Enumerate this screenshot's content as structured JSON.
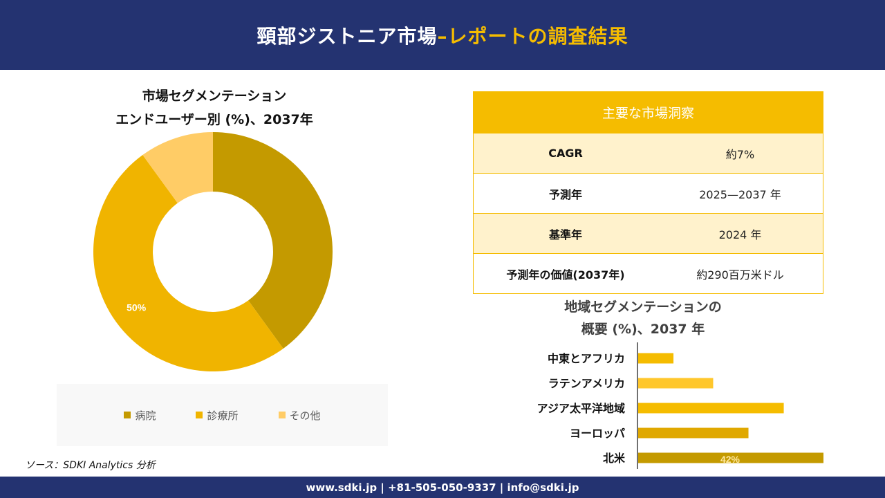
{
  "header": {
    "title_main": "頸部ジストニア市場",
    "title_accent": "–レポートの調査結果"
  },
  "donut": {
    "title_line1": "市場セグメンテーション",
    "title_line2": "エンドユーザー別 (%)、2037年"
  },
  "insights": {
    "heading": "主要な市場洞察",
    "rows": [
      {
        "key": "CAGR",
        "value": "約7%"
      },
      {
        "key": "予測年",
        "value": "2025—2037 年"
      },
      {
        "key": "基準年",
        "value": "2024 年"
      },
      {
        "key": "予測年の価値(2037年)",
        "value": "約290百万米ドル"
      }
    ]
  },
  "bar_section": {
    "title_line1": "地域セグメンテーションの",
    "title_line2": "概要 (%)、2037 年"
  },
  "source": "ソース：SDKI Analytics 分析",
  "footer": {
    "text": "www.sdki.jp | +81-505-050-9337 | info@sdki.jp"
  },
  "chart_data": [
    {
      "type": "pie",
      "variant": "donut",
      "title": "市場セグメンテーション エンドユーザー別 (%)、2037年",
      "categories": [
        "病院",
        "診療所",
        "その他"
      ],
      "values": [
        40,
        50,
        10
      ],
      "data_labels": [
        "",
        "50%",
        ""
      ],
      "colors": [
        "#C49A00",
        "#F0B400",
        "#FFCC66"
      ],
      "legend_position": "bottom"
    },
    {
      "type": "bar",
      "orientation": "horizontal",
      "title": "地域セグメンテーションの 概要 (%)、2037 年",
      "categories": [
        "中東とアフリカ",
        "ラテンアメリカ",
        "アジア太平洋地域",
        "ヨーロッパ",
        "北米"
      ],
      "values": [
        8,
        17,
        33,
        25,
        42
      ],
      "data_labels": [
        "",
        "",
        "",
        "",
        "42%"
      ],
      "colors": [
        "#F5BC00",
        "#FFC72C",
        "#F5BC00",
        "#E0A800",
        "#C49A00"
      ],
      "xlim": [
        0,
        42
      ],
      "grid": false
    }
  ]
}
